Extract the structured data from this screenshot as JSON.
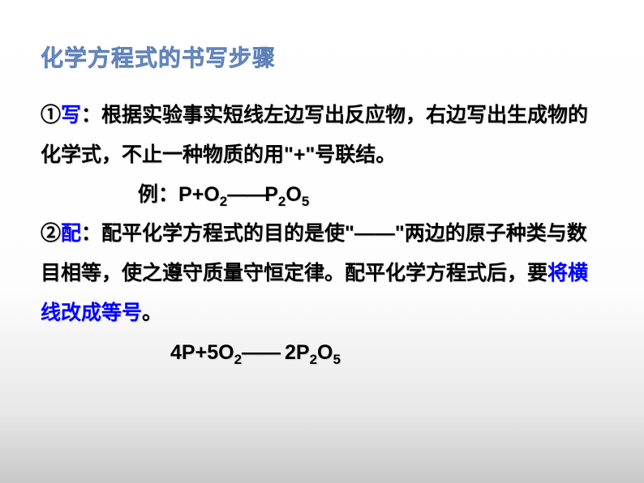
{
  "slide": {
    "background_gradient": [
      "#ffffff",
      "#fdfdfd",
      "#e8e8e8",
      "#c8c8c8"
    ],
    "title": {
      "text": "化学方程式的书写步骤",
      "color": "#799dd0",
      "fontsize": 28,
      "fontweight": "bold"
    },
    "body": {
      "color": "#000000",
      "keyword_color": "#0000ff",
      "fontsize": 25,
      "fontweight": "bold",
      "line_height": 1.95
    },
    "step1": {
      "num": "①",
      "kw": "写",
      "colon": "：",
      "text": "根据实验事实短线左边写出反应物，右边写出生成物的化学式，不止一种物质的用\"+\"号联结。"
    },
    "ex1": {
      "label": "例：",
      "p": "P",
      "plus": "+",
      "o": "O",
      "two": "2",
      "dash": "——",
      "po": "P",
      "otwo": "O",
      "five": "5"
    },
    "step2": {
      "num": "②",
      "kw": "配",
      "colon": "：",
      "text_a": "配平化学方程式的目的是使\"——\"两边的原子种类与数目相等，使之遵守质量守恒定律。配平化学方程式后，要",
      "kw2": "将横线改成等号",
      "text_b": "。"
    },
    "ex2": {
      "c1": "4",
      "p": "P",
      "plus": "+",
      "c2": "5",
      "o": "O",
      "two": "2",
      "dash": "——",
      "space": " ",
      "c3": "2",
      "po": "P",
      "s2": "2",
      "otwo": "O",
      "five": "5"
    }
  }
}
